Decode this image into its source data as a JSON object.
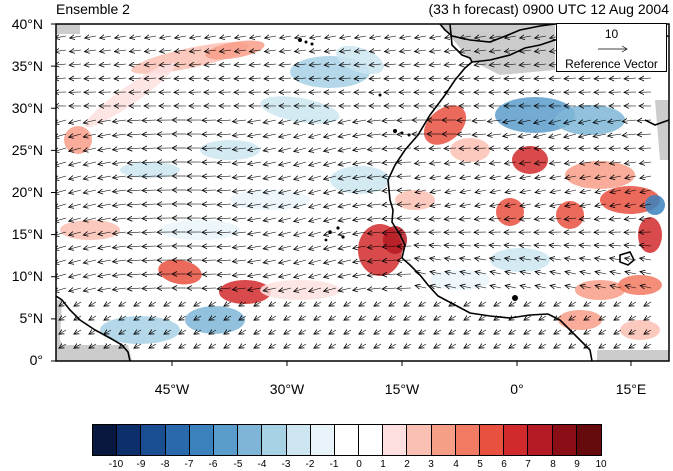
{
  "header": {
    "left_title": "Ensemble 2",
    "right_title": "(33 h forecast) 0900 UTC 12 Aug 2004"
  },
  "map": {
    "lat_labels": [
      "40°N",
      "35°N",
      "30°N",
      "25°N",
      "20°N",
      "15°N",
      "10°N",
      "5°N",
      "0°"
    ],
    "lon_labels": [
      "45°W",
      "30°W",
      "15°W",
      "0°",
      "15°E"
    ],
    "extent": {
      "lon_min": -60,
      "lon_max": 20,
      "lat_min": 0,
      "lat_max": 40
    },
    "land_color": "#cccccc",
    "coast_color": "#000000"
  },
  "reference_vector": {
    "value": "10",
    "label": "Reference Vector"
  },
  "colorbar": {
    "labels": [
      "-10",
      "-9",
      "-8",
      "-7",
      "-6",
      "-5",
      "-4",
      "-3",
      "-2",
      "-1",
      "0",
      "1",
      "2",
      "3",
      "4",
      "5",
      "6",
      "7",
      "8",
      "9",
      "10"
    ],
    "colors": [
      "#08183e",
      "#0d2f6b",
      "#1b4e90",
      "#2a69ab",
      "#3b82bd",
      "#5a9ccb",
      "#7fb6d7",
      "#a7d1e5",
      "#cde6f1",
      "#e9f4fa",
      "#ffffff",
      "#ffffff",
      "#fde0df",
      "#fbc0b4",
      "#f79e87",
      "#f27a62",
      "#e8503f",
      "#d12a2c",
      "#b51b24",
      "#8b0d16",
      "#650a0d"
    ]
  }
}
